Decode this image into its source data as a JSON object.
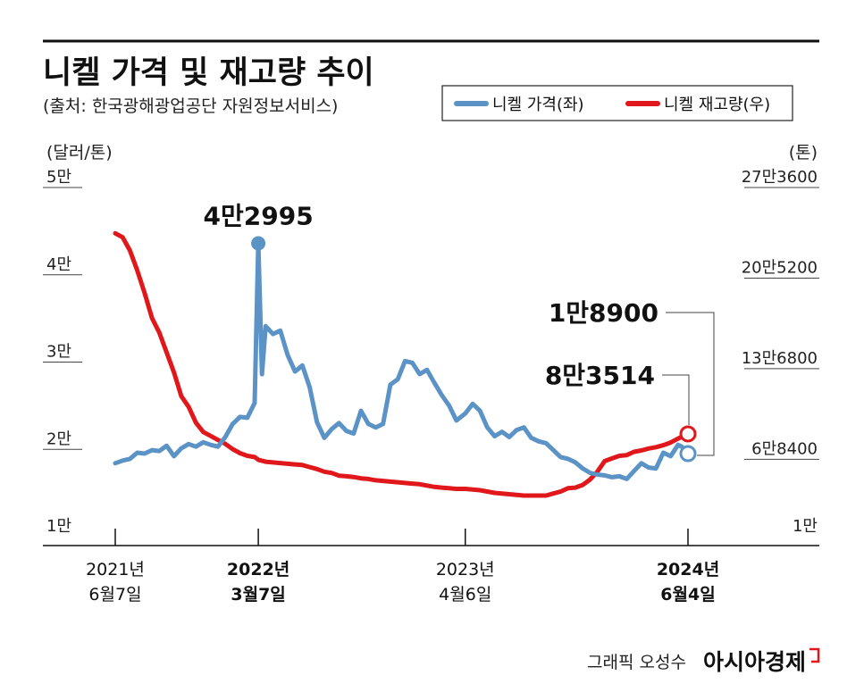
{
  "chart_data": {
    "type": "line",
    "title": "니켈 가격 및 재고량 추이",
    "subtitle": "(출처: 한국광해광업공단 자원정보서비스)",
    "left_axis": {
      "unit_label": "(달러/톤)",
      "ticks": [
        {
          "label": "5만",
          "value": 50000
        },
        {
          "label": "4만",
          "value": 40000
        },
        {
          "label": "3만",
          "value": 30000
        },
        {
          "label": "2만",
          "value": 20000
        },
        {
          "label": "1만",
          "value": 10000
        }
      ],
      "ylim": [
        10000,
        50000
      ]
    },
    "right_axis": {
      "unit_label": "(톤)",
      "ticks": [
        {
          "label": "27만3600",
          "value": 273600
        },
        {
          "label": "20만5200",
          "value": 205200
        },
        {
          "label": "13만6800",
          "value": 136800
        },
        {
          "label": "6만8400",
          "value": 68400
        },
        {
          "label": "1만",
          "value": 10000
        }
      ],
      "ylim": [
        10000,
        273600
      ]
    },
    "x_ticks": [
      {
        "line1": "2021년",
        "line2": "6월7일",
        "date": "2021-06-07",
        "bold": false
      },
      {
        "line1": "2022년",
        "line2": "3월7일",
        "date": "2022-03-07",
        "bold": true
      },
      {
        "line1": "2023년",
        "line2": "4월6일",
        "date": "2023-04-06",
        "bold": false
      },
      {
        "line1": "2024년",
        "line2": "6월4일",
        "date": "2024-06-04",
        "bold": true
      }
    ],
    "xlim": [
      "2021-06-07",
      "2024-06-04"
    ],
    "legend_placement": "top-right",
    "grid": false,
    "series": [
      {
        "name": "니켈 가격(좌)",
        "axis": "left",
        "color": "#5b93c7",
        "points": [
          [
            "2021-06-07",
            17800
          ],
          [
            "2021-06-21",
            18100
          ],
          [
            "2021-07-05",
            18300
          ],
          [
            "2021-07-19",
            19000
          ],
          [
            "2021-08-02",
            18900
          ],
          [
            "2021-08-16",
            19300
          ],
          [
            "2021-08-30",
            19200
          ],
          [
            "2021-09-13",
            19800
          ],
          [
            "2021-09-27",
            18600
          ],
          [
            "2021-10-11",
            19500
          ],
          [
            "2021-10-25",
            20000
          ],
          [
            "2021-11-08",
            19700
          ],
          [
            "2021-11-22",
            20200
          ],
          [
            "2021-12-06",
            19900
          ],
          [
            "2021-12-20",
            19700
          ],
          [
            "2022-01-03",
            20800
          ],
          [
            "2022-01-17",
            22300
          ],
          [
            "2022-01-31",
            23100
          ],
          [
            "2022-02-14",
            23000
          ],
          [
            "2022-02-28",
            24700
          ],
          [
            "2022-03-07",
            42995
          ],
          [
            "2022-03-14",
            28000
          ],
          [
            "2022-03-21",
            33500
          ],
          [
            "2022-04-04",
            32600
          ],
          [
            "2022-04-18",
            33000
          ],
          [
            "2022-05-02",
            30200
          ],
          [
            "2022-05-16",
            28300
          ],
          [
            "2022-05-30",
            29000
          ],
          [
            "2022-06-13",
            26500
          ],
          [
            "2022-06-27",
            22500
          ],
          [
            "2022-07-11",
            20700
          ],
          [
            "2022-07-25",
            21700
          ],
          [
            "2022-08-08",
            22400
          ],
          [
            "2022-08-22",
            21500
          ],
          [
            "2022-09-05",
            21200
          ],
          [
            "2022-09-19",
            23800
          ],
          [
            "2022-10-03",
            22300
          ],
          [
            "2022-10-17",
            21900
          ],
          [
            "2022-10-31",
            22300
          ],
          [
            "2022-11-14",
            26800
          ],
          [
            "2022-11-28",
            27400
          ],
          [
            "2022-12-12",
            29500
          ],
          [
            "2022-12-26",
            29300
          ],
          [
            "2023-01-09",
            28000
          ],
          [
            "2023-01-23",
            28500
          ],
          [
            "2023-02-06",
            27000
          ],
          [
            "2023-02-20",
            25600
          ],
          [
            "2023-03-06",
            24400
          ],
          [
            "2023-03-20",
            22700
          ],
          [
            "2023-04-06",
            23500
          ],
          [
            "2023-04-20",
            24600
          ],
          [
            "2023-05-04",
            23800
          ],
          [
            "2023-05-18",
            21900
          ],
          [
            "2023-06-01",
            20900
          ],
          [
            "2023-06-15",
            21400
          ],
          [
            "2023-06-29",
            20800
          ],
          [
            "2023-07-13",
            21600
          ],
          [
            "2023-07-27",
            21900
          ],
          [
            "2023-08-10",
            20700
          ],
          [
            "2023-08-24",
            20300
          ],
          [
            "2023-09-07",
            20100
          ],
          [
            "2023-09-21",
            19300
          ],
          [
            "2023-10-05",
            18500
          ],
          [
            "2023-10-19",
            18300
          ],
          [
            "2023-11-02",
            17900
          ],
          [
            "2023-11-16",
            17200
          ],
          [
            "2023-11-30",
            16700
          ],
          [
            "2023-12-14",
            16500
          ],
          [
            "2023-12-28",
            16400
          ],
          [
            "2024-01-11",
            16200
          ],
          [
            "2024-01-25",
            16300
          ],
          [
            "2024-02-08",
            16000
          ],
          [
            "2024-02-22",
            16900
          ],
          [
            "2024-03-07",
            17800
          ],
          [
            "2024-03-21",
            17300
          ],
          [
            "2024-04-04",
            17200
          ],
          [
            "2024-04-18",
            19000
          ],
          [
            "2024-05-02",
            18600
          ],
          [
            "2024-05-16",
            19900
          ],
          [
            "2024-05-23",
            19700
          ],
          [
            "2024-06-04",
            18900
          ]
        ],
        "end_label": "1만8900"
      },
      {
        "name": "니켈 재고량(우)",
        "axis": "right",
        "color": "#e0181b",
        "points": [
          [
            "2021-06-07",
            235000
          ],
          [
            "2021-06-21",
            232000
          ],
          [
            "2021-07-05",
            222000
          ],
          [
            "2021-07-19",
            207000
          ],
          [
            "2021-08-02",
            190000
          ],
          [
            "2021-08-16",
            171000
          ],
          [
            "2021-08-30",
            160000
          ],
          [
            "2021-09-13",
            145000
          ],
          [
            "2021-09-27",
            130000
          ],
          [
            "2021-10-11",
            112000
          ],
          [
            "2021-10-25",
            104000
          ],
          [
            "2021-11-08",
            92000
          ],
          [
            "2021-11-22",
            85000
          ],
          [
            "2021-12-06",
            82000
          ],
          [
            "2021-12-20",
            79000
          ],
          [
            "2022-01-03",
            76000
          ],
          [
            "2022-01-17",
            72000
          ],
          [
            "2022-01-31",
            69000
          ],
          [
            "2022-02-14",
            67000
          ],
          [
            "2022-02-28",
            66000
          ],
          [
            "2022-03-07",
            64000
          ],
          [
            "2022-03-21",
            62500
          ],
          [
            "2022-04-04",
            62000
          ],
          [
            "2022-04-18",
            61500
          ],
          [
            "2022-05-02",
            61000
          ],
          [
            "2022-05-16",
            60500
          ],
          [
            "2022-05-30",
            60000
          ],
          [
            "2022-06-13",
            58500
          ],
          [
            "2022-06-27",
            57000
          ],
          [
            "2022-07-11",
            55000
          ],
          [
            "2022-07-25",
            54000
          ],
          [
            "2022-08-08",
            52000
          ],
          [
            "2022-08-22",
            51500
          ],
          [
            "2022-09-05",
            51000
          ],
          [
            "2022-09-19",
            50000
          ],
          [
            "2022-10-03",
            49500
          ],
          [
            "2022-10-17",
            48500
          ],
          [
            "2022-10-31",
            48000
          ],
          [
            "2022-11-14",
            47500
          ],
          [
            "2022-11-28",
            47000
          ],
          [
            "2022-12-12",
            46500
          ],
          [
            "2022-12-26",
            46000
          ],
          [
            "2023-01-09",
            45500
          ],
          [
            "2023-01-23",
            44500
          ],
          [
            "2023-02-06",
            43500
          ],
          [
            "2023-02-20",
            43000
          ],
          [
            "2023-03-06",
            42500
          ],
          [
            "2023-03-20",
            42000
          ],
          [
            "2023-04-06",
            42000
          ],
          [
            "2023-04-20",
            41500
          ],
          [
            "2023-05-04",
            41000
          ],
          [
            "2023-05-18",
            40000
          ],
          [
            "2023-06-01",
            39000
          ],
          [
            "2023-06-15",
            38500
          ],
          [
            "2023-06-29",
            38000
          ],
          [
            "2023-07-13",
            37500
          ],
          [
            "2023-07-27",
            37000
          ],
          [
            "2023-08-10",
            37000
          ],
          [
            "2023-08-24",
            37000
          ],
          [
            "2023-09-07",
            37000
          ],
          [
            "2023-09-21",
            38500
          ],
          [
            "2023-10-05",
            40000
          ],
          [
            "2023-10-19",
            42500
          ],
          [
            "2023-11-02",
            43000
          ],
          [
            "2023-11-16",
            45000
          ],
          [
            "2023-11-30",
            49000
          ],
          [
            "2023-12-14",
            55000
          ],
          [
            "2023-12-28",
            63000
          ],
          [
            "2024-01-11",
            65000
          ],
          [
            "2024-01-25",
            67000
          ],
          [
            "2024-02-08",
            67500
          ],
          [
            "2024-02-22",
            70000
          ],
          [
            "2024-03-07",
            71000
          ],
          [
            "2024-03-21",
            72500
          ],
          [
            "2024-04-04",
            73500
          ],
          [
            "2024-04-18",
            75000
          ],
          [
            "2024-05-02",
            77000
          ],
          [
            "2024-05-16",
            80000
          ],
          [
            "2024-06-04",
            83514
          ]
        ],
        "end_label": "8만3514"
      }
    ],
    "annotations": [
      {
        "text": "4만2995",
        "series": "니켈 가격(좌)",
        "date": "2022-03-07",
        "value": 42995
      },
      {
        "text": "1만8900",
        "series": "니켈 가격(좌)",
        "date": "2024-06-04",
        "value": 18900
      },
      {
        "text": "8만3514",
        "series": "니켈 재고량(우)",
        "date": "2024-06-04",
        "value": 83514
      }
    ]
  },
  "credit": {
    "graphic": "그래픽 오성수",
    "brand": "아시아경제"
  }
}
